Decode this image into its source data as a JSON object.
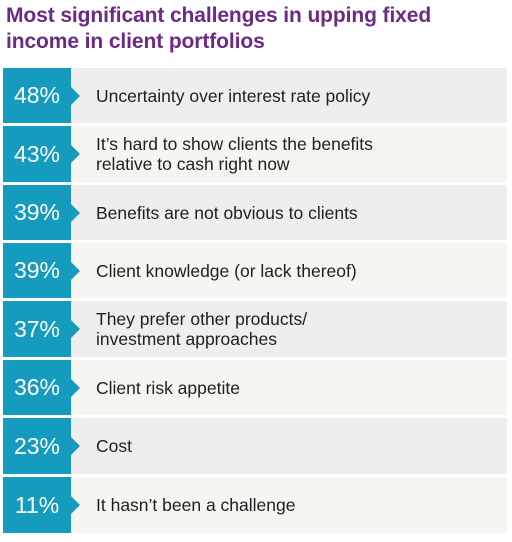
{
  "chart_data": {
    "type": "bar",
    "title": "Most significant challenges in upping fixed income in client portfolios",
    "categories": [
      "Uncertainty over interest rate policy",
      "It’s hard to show clients the benefits relative to cash right now",
      "Benefits are not obvious to clients",
      "Client knowledge (or lack thereof)",
      "They prefer other products/ investment approaches",
      "Client risk appetite",
      "Cost",
      "It hasn’t been a challenge"
    ],
    "values": [
      48,
      43,
      39,
      39,
      37,
      36,
      23,
      11
    ],
    "value_labels": [
      "48%",
      "43%",
      "39%",
      "39%",
      "37%",
      "36%",
      "23%",
      "11%"
    ],
    "label_lines": [
      [
        "Uncertainty over interest rate policy"
      ],
      [
        "It’s hard to show clients the benefits",
        "relative to cash right now"
      ],
      [
        "Benefits are not obvious to clients"
      ],
      [
        "Client knowledge (or lack thereof)"
      ],
      [
        "They prefer other products/",
        "investment approaches"
      ],
      [
        "Client risk appetite"
      ],
      [
        "Cost"
      ],
      [
        "It hasn’t been a challenge"
      ]
    ],
    "colors": {
      "title": "#6b2a86",
      "value_cell": "#149bbd",
      "row_shade_a": "#eeeeee",
      "row_shade_b": "#f5f6f1"
    }
  }
}
